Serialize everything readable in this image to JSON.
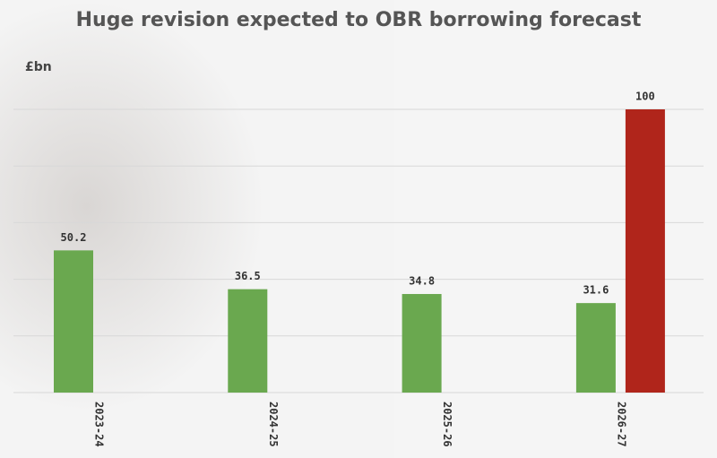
{
  "chart_data": {
    "type": "bar",
    "title": "Huge revision expected to OBR borrowing forecast",
    "unit_label": "£bn",
    "categories": [
      "2023-24",
      "2024-25",
      "2025-26",
      "2026-27"
    ],
    "series": [
      {
        "color": "#6aa84f",
        "values": [
          50.2,
          36.5,
          34.8,
          31.6
        ]
      },
      {
        "color": "#b0251b",
        "values": [
          null,
          null,
          null,
          100
        ]
      }
    ],
    "ylim": [
      0,
      100
    ],
    "yticks": [
      0,
      20,
      40,
      60,
      80,
      100
    ],
    "grid": true
  }
}
